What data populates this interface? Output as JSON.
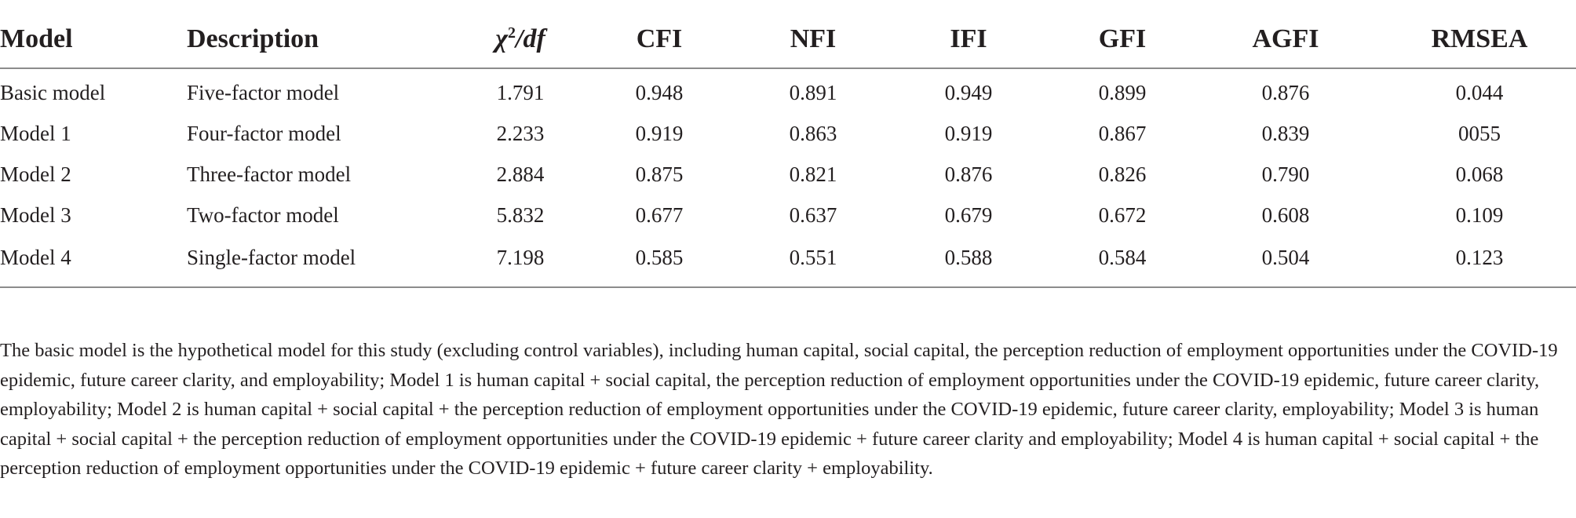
{
  "table": {
    "columns": [
      "Model",
      "Description",
      "χ2/df",
      "CFI",
      "NFI",
      "IFI",
      "GFI",
      "AGFI",
      "RMSEA"
    ],
    "chi_header": {
      "chi": "χ",
      "sup": "2",
      "rest": "/df"
    },
    "rows": [
      [
        "Basic model",
        "Five-factor model",
        "1.791",
        "0.948",
        "0.891",
        "0.949",
        "0.899",
        "0.876",
        "0.044"
      ],
      [
        "Model 1",
        "Four-factor model",
        "2.233",
        "0.919",
        "0.863",
        "0.919",
        "0.867",
        "0.839",
        "0055"
      ],
      [
        "Model 2",
        "Three-factor model",
        "2.884",
        "0.875",
        "0.821",
        "0.876",
        "0.826",
        "0.790",
        "0.068"
      ],
      [
        "Model 3",
        "Two-factor model",
        "5.832",
        "0.677",
        "0.637",
        "0.679",
        "0.672",
        "0.608",
        "0.109"
      ],
      [
        "Model 4",
        "Single-factor model",
        "7.198",
        "0.585",
        "0.551",
        "0.588",
        "0.584",
        "0.504",
        "0.123"
      ]
    ]
  },
  "footnote": "The basic model is the hypothetical model for this study (excluding control variables), including human capital, social capital, the perception reduction of employment opportunities under the COVID-19 epidemic, future career clarity, and employability; Model 1 is human capital + social capital, the perception reduction of employment opportunities under the COVID-19 epidemic, future career clarity, employability; Model 2 is human capital + social capital + the perception reduction of employment opportunities under the COVID-19 epidemic, future career clarity, employability; Model 3 is human capital + social capital + the perception reduction of employment opportunities under the COVID-19 epidemic + future career clarity and employability; Model 4 is human capital + social capital + the perception reduction of employment opportunities under the COVID-19 epidemic + future career clarity + employability."
}
